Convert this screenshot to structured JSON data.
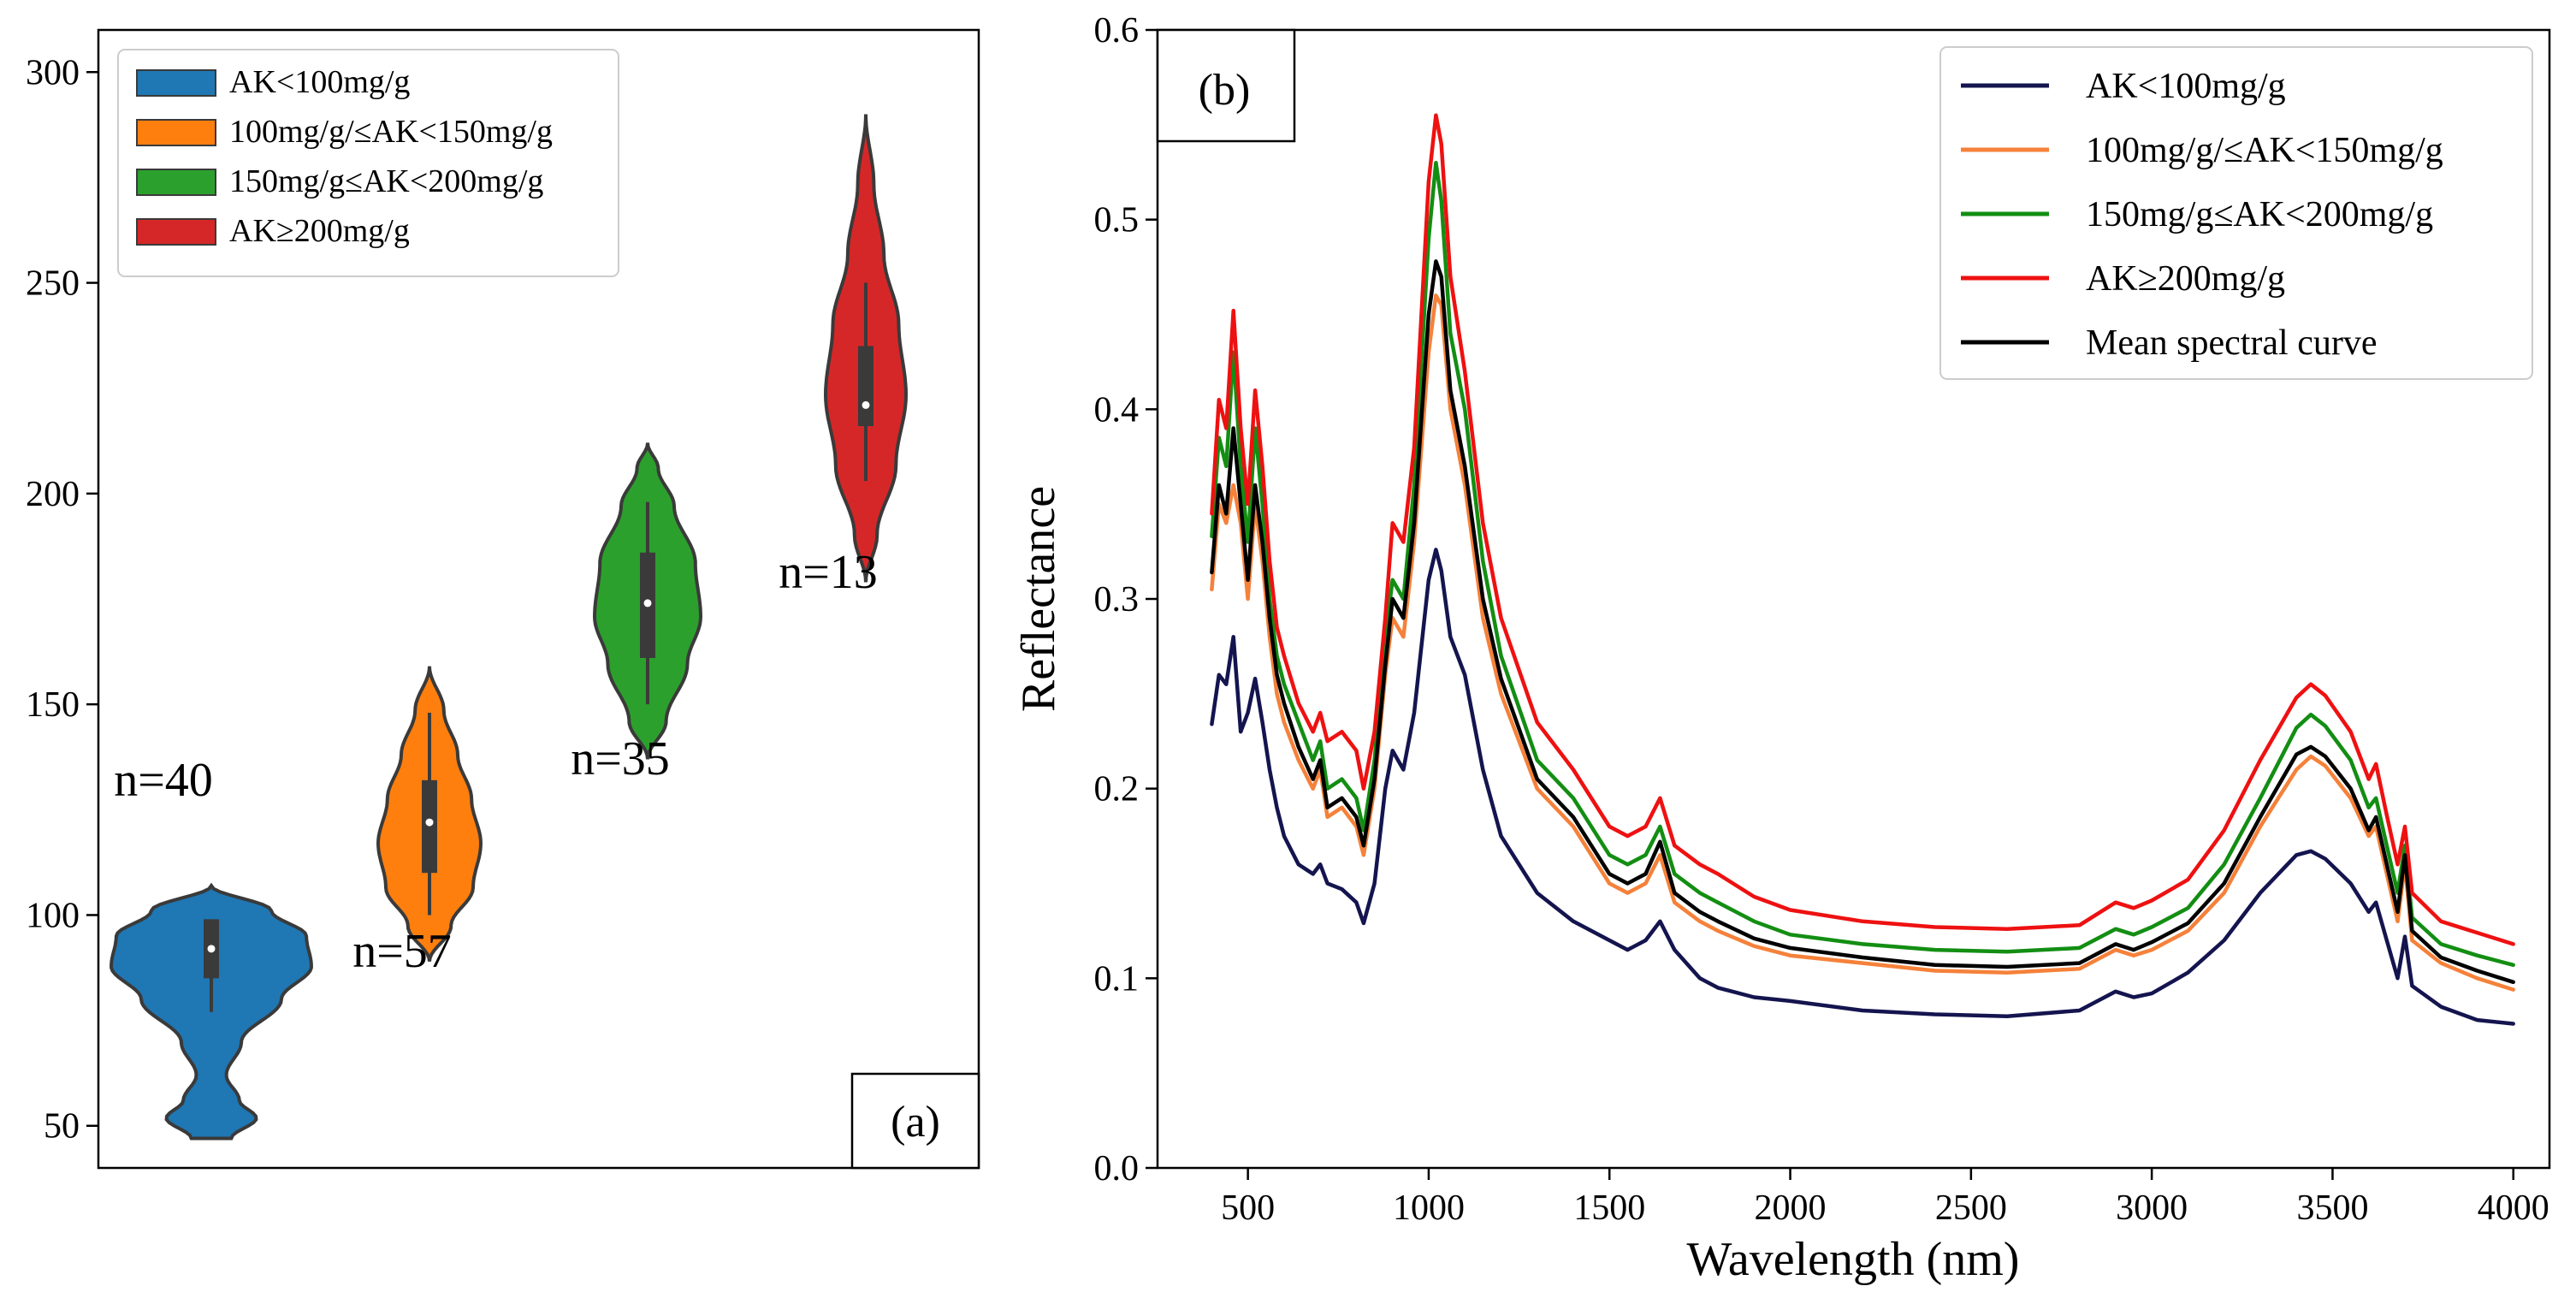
{
  "chart_data": [
    {
      "id": "a",
      "type": "violin",
      "panel_label": "(a)",
      "ylim": [
        40,
        310
      ],
      "yticks": [
        50,
        100,
        150,
        200,
        250,
        300
      ],
      "legend_position": "top-left",
      "groups": [
        {
          "label": "AK<100mg/g",
          "color": "#1f77b4",
          "n_label": "n=40",
          "min": 47,
          "max": 107,
          "q1": 85,
          "median": 92,
          "q3": 99,
          "whisker_low": 77,
          "whisker_high": 99
        },
        {
          "label": "100mg/g/≤AK<150mg/g",
          "color": "#ff7f0e",
          "n_label": "n=57",
          "min": 89,
          "max": 159,
          "q1": 110,
          "median": 122,
          "q3": 132,
          "whisker_low": 100,
          "whisker_high": 148
        },
        {
          "label": "150mg/g≤AK<200mg/g",
          "color": "#2ca02c",
          "n_label": "n=35",
          "min": 137,
          "max": 212,
          "q1": 161,
          "median": 174,
          "q3": 186,
          "whisker_low": 150,
          "whisker_high": 198
        },
        {
          "label": "AK≥200mg/g",
          "color": "#d62728",
          "n_label": "n=13",
          "min": 179,
          "max": 290,
          "q1": 216,
          "median": 221,
          "q3": 235,
          "whisker_low": 203,
          "whisker_high": 250
        }
      ]
    },
    {
      "id": "b",
      "type": "line",
      "panel_label": "(b)",
      "xlabel": "Wavelength (nm)",
      "ylabel": "Reflectance",
      "xlim": [
        250,
        4100
      ],
      "ylim": [
        0.0,
        0.6
      ],
      "xticks": [
        500,
        1000,
        1500,
        2000,
        2500,
        3000,
        3500,
        4000
      ],
      "yticks": [
        0.0,
        0.1,
        0.2,
        0.3,
        0.4,
        0.5,
        0.6
      ],
      "legend_position": "top-right",
      "x": [
        400,
        420,
        440,
        460,
        480,
        500,
        520,
        540,
        560,
        580,
        600,
        640,
        680,
        700,
        720,
        760,
        800,
        820,
        850,
        880,
        900,
        930,
        960,
        1000,
        1020,
        1035,
        1060,
        1100,
        1150,
        1200,
        1300,
        1400,
        1500,
        1550,
        1600,
        1640,
        1680,
        1750,
        1800,
        1900,
        2000,
        2200,
        2400,
        2600,
        2800,
        2900,
        2950,
        3000,
        3100,
        3200,
        3300,
        3400,
        3440,
        3480,
        3550,
        3600,
        3620,
        3650,
        3680,
        3700,
        3720,
        3800,
        3900,
        4000
      ],
      "series": [
        {
          "name": "AK<100mg/g",
          "color": "#14144f",
          "values": [
            0.234,
            0.26,
            0.255,
            0.28,
            0.23,
            0.24,
            0.258,
            0.235,
            0.21,
            0.19,
            0.175,
            0.16,
            0.155,
            0.16,
            0.15,
            0.147,
            0.14,
            0.129,
            0.15,
            0.2,
            0.22,
            0.21,
            0.24,
            0.31,
            0.326,
            0.315,
            0.28,
            0.26,
            0.21,
            0.175,
            0.145,
            0.13,
            0.12,
            0.115,
            0.12,
            0.13,
            0.115,
            0.1,
            0.095,
            0.09,
            0.088,
            0.083,
            0.081,
            0.08,
            0.083,
            0.093,
            0.09,
            0.092,
            0.103,
            0.12,
            0.145,
            0.165,
            0.167,
            0.163,
            0.15,
            0.135,
            0.14,
            0.12,
            0.1,
            0.122,
            0.096,
            0.085,
            0.078,
            0.076
          ]
        },
        {
          "name": "100mg/g/≤AK<150mg/g",
          "color": "#f5813a",
          "values": [
            0.305,
            0.35,
            0.34,
            0.36,
            0.34,
            0.3,
            0.35,
            0.32,
            0.28,
            0.25,
            0.235,
            0.215,
            0.2,
            0.21,
            0.185,
            0.19,
            0.18,
            0.165,
            0.2,
            0.26,
            0.29,
            0.28,
            0.33,
            0.43,
            0.46,
            0.455,
            0.4,
            0.36,
            0.29,
            0.25,
            0.2,
            0.18,
            0.15,
            0.145,
            0.15,
            0.165,
            0.14,
            0.13,
            0.125,
            0.117,
            0.112,
            0.108,
            0.104,
            0.103,
            0.105,
            0.115,
            0.112,
            0.115,
            0.125,
            0.145,
            0.18,
            0.21,
            0.217,
            0.212,
            0.195,
            0.175,
            0.18,
            0.155,
            0.13,
            0.16,
            0.12,
            0.108,
            0.1,
            0.094
          ]
        },
        {
          "name": "150mg/g≤AK<200mg/g",
          "color": "#138e13",
          "values": [
            0.333,
            0.385,
            0.37,
            0.43,
            0.37,
            0.33,
            0.39,
            0.35,
            0.3,
            0.27,
            0.255,
            0.235,
            0.215,
            0.225,
            0.2,
            0.205,
            0.195,
            0.178,
            0.215,
            0.28,
            0.31,
            0.3,
            0.36,
            0.49,
            0.53,
            0.51,
            0.44,
            0.4,
            0.32,
            0.27,
            0.215,
            0.195,
            0.165,
            0.16,
            0.165,
            0.18,
            0.155,
            0.145,
            0.14,
            0.13,
            0.123,
            0.118,
            0.115,
            0.114,
            0.116,
            0.126,
            0.123,
            0.127,
            0.137,
            0.16,
            0.195,
            0.232,
            0.239,
            0.233,
            0.215,
            0.19,
            0.195,
            0.17,
            0.145,
            0.17,
            0.132,
            0.118,
            0.112,
            0.107
          ]
        },
        {
          "name": "AK≥200mg/g",
          "color": "#ee1111",
          "values": [
            0.345,
            0.405,
            0.39,
            0.452,
            0.39,
            0.35,
            0.41,
            0.37,
            0.32,
            0.285,
            0.27,
            0.245,
            0.23,
            0.24,
            0.225,
            0.23,
            0.22,
            0.2,
            0.23,
            0.29,
            0.34,
            0.33,
            0.38,
            0.52,
            0.555,
            0.54,
            0.47,
            0.42,
            0.34,
            0.29,
            0.235,
            0.21,
            0.18,
            0.175,
            0.18,
            0.195,
            0.17,
            0.16,
            0.155,
            0.143,
            0.136,
            0.13,
            0.127,
            0.126,
            0.128,
            0.14,
            0.137,
            0.141,
            0.152,
            0.178,
            0.215,
            0.248,
            0.255,
            0.249,
            0.23,
            0.205,
            0.213,
            0.186,
            0.16,
            0.18,
            0.145,
            0.13,
            0.124,
            0.118
          ]
        },
        {
          "name": "Mean spectral curve",
          "color": "#000000",
          "values": [
            0.314,
            0.36,
            0.345,
            0.39,
            0.35,
            0.31,
            0.36,
            0.33,
            0.29,
            0.26,
            0.245,
            0.222,
            0.205,
            0.215,
            0.19,
            0.195,
            0.185,
            0.17,
            0.205,
            0.265,
            0.3,
            0.29,
            0.34,
            0.45,
            0.478,
            0.47,
            0.41,
            0.37,
            0.3,
            0.258,
            0.205,
            0.185,
            0.155,
            0.15,
            0.155,
            0.172,
            0.145,
            0.135,
            0.13,
            0.121,
            0.116,
            0.111,
            0.107,
            0.106,
            0.108,
            0.118,
            0.115,
            0.119,
            0.129,
            0.15,
            0.185,
            0.218,
            0.222,
            0.217,
            0.2,
            0.178,
            0.185,
            0.16,
            0.135,
            0.165,
            0.125,
            0.111,
            0.104,
            0.098
          ]
        }
      ]
    }
  ]
}
